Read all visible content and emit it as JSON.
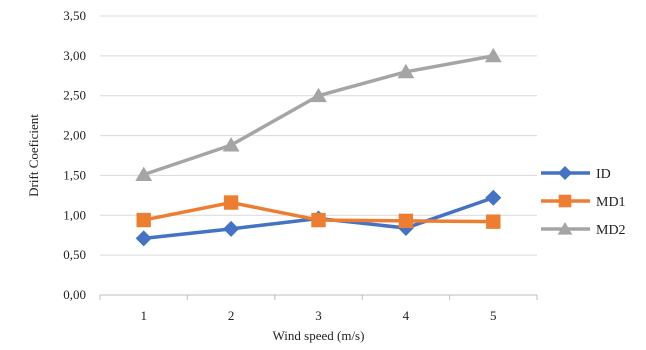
{
  "chart_data": {
    "type": "line",
    "categories": [
      "1",
      "2",
      "3",
      "4",
      "5"
    ],
    "series": [
      {
        "name": "ID",
        "values": [
          0.71,
          0.83,
          0.96,
          0.84,
          1.22
        ],
        "color": "#4472C4",
        "marker": "diamond"
      },
      {
        "name": "MD1",
        "values": [
          0.94,
          1.16,
          0.94,
          0.93,
          0.92
        ],
        "color": "#ED7D31",
        "marker": "square"
      },
      {
        "name": "MD2",
        "values": [
          1.51,
          1.88,
          2.5,
          2.8,
          3.0
        ],
        "color": "#A5A5A5",
        "marker": "triangle"
      }
    ],
    "xlabel": "Wind speed (m/s)",
    "ylabel": "Drift Coeficient",
    "ylim": [
      0,
      3.5
    ],
    "yticks": [
      "0,00",
      "0,50",
      "1,00",
      "1,50",
      "2,00",
      "2,50",
      "3,00",
      "3,50"
    ],
    "grid": "horizontal",
    "legend_position": "right"
  }
}
